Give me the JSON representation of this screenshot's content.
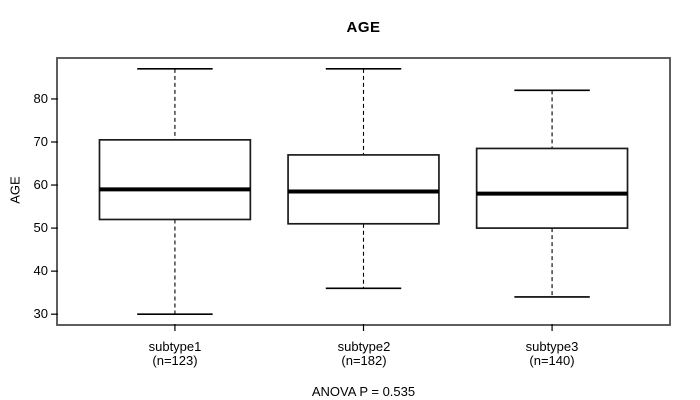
{
  "figure": {
    "title": "AGE",
    "y_axis_label": "AGE",
    "footer_annotation": "ANOVA P = 0.535"
  },
  "chart_data": {
    "type": "boxplot",
    "title": "AGE",
    "ylabel": "AGE",
    "xlabel": "",
    "yticks": [
      30,
      40,
      50,
      60,
      70,
      80
    ],
    "ylim": [
      27.7,
      89.3
    ],
    "grid": false,
    "legend": "none",
    "annotation": "ANOVA P = 0.535",
    "colors": {
      "box_fill": "#ffffff",
      "box_stroke": "#1b1b1b",
      "median_stroke": "#000000",
      "whisker_stroke": "#000000",
      "frame_stroke": "#4d4d4d",
      "text": "#000000",
      "background": "#ffffff"
    },
    "groups": [
      {
        "label": "subtype1",
        "sublabel": "(n=123)",
        "n": 123,
        "whisker_low": 30,
        "q1": 52,
        "median": 59,
        "q3": 70.5,
        "whisker_high": 87
      },
      {
        "label": "subtype2",
        "sublabel": "(n=182)",
        "n": 182,
        "whisker_low": 36,
        "q1": 51,
        "median": 58.5,
        "q3": 67,
        "whisker_high": 87
      },
      {
        "label": "subtype3",
        "sublabel": "(n=140)",
        "n": 140,
        "whisker_low": 34,
        "q1": 50,
        "median": 58,
        "q3": 68.5,
        "whisker_high": 82
      }
    ]
  }
}
